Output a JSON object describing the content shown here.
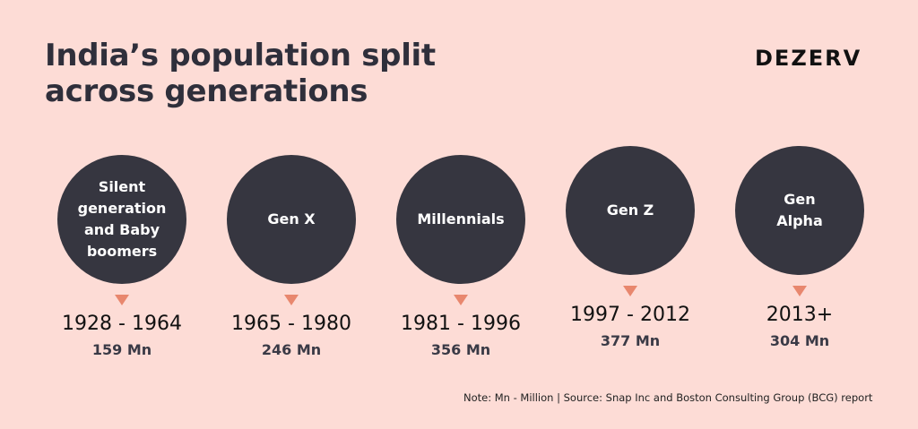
{
  "title": {
    "line1": "India’s population split",
    "line2": "across generations"
  },
  "brand": "DEZERV",
  "generations": [
    {
      "label_lines": [
        "Silent",
        "generation",
        "and Baby",
        "boomers"
      ],
      "years": "1928 - 1964",
      "population": "159 Mn"
    },
    {
      "label_lines": [
        "Gen X"
      ],
      "years": "1965 - 1980",
      "population": "246 Mn"
    },
    {
      "label_lines": [
        "Millennials"
      ],
      "years": "1981 - 1996",
      "population": "356 Mn"
    },
    {
      "label_lines": [
        "Gen Z"
      ],
      "years": "1997 - 2012",
      "population": "377 Mn"
    },
    {
      "label_lines": [
        "Gen",
        "Alpha"
      ],
      "years": "2013+",
      "population": "304 Mn"
    }
  ],
  "note": "Note: Mn - Million | Source: Snap Inc and Boston Consulting Group (BCG) report",
  "colors": {
    "background": "#fddcd6",
    "circle": "#363640",
    "arrow": "#e8876e"
  }
}
